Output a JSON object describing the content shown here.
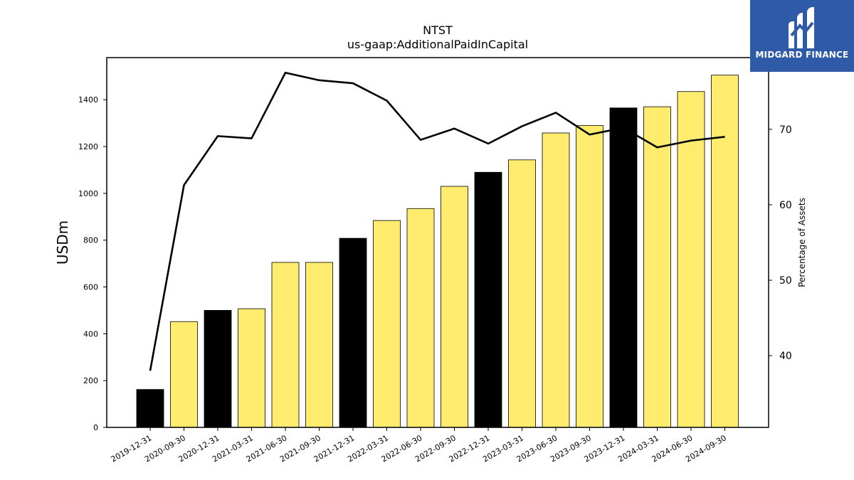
{
  "brand": {
    "name": "MIDGARD FINANCE",
    "color": "#2f5aa8",
    "logo_icon": "midgard-mountain-icon"
  },
  "chart_data": {
    "type": "bar",
    "title": "NTST",
    "subtitle": "us-gaap:AdditionalPaidInCapital",
    "ylabel": "USDm",
    "y2label": "Percentage of Assets",
    "ylim": [
      0,
      1580
    ],
    "y2lim": [
      30.5,
      79.5
    ],
    "yticks": [
      0,
      200,
      400,
      600,
      800,
      1000,
      1200,
      1400
    ],
    "y2ticks": [
      40,
      50,
      60,
      70
    ],
    "categories": [
      "2019-12-31",
      "2020-09-30",
      "2020-12-31",
      "2021-03-31",
      "2021-06-30",
      "2021-09-30",
      "2021-12-31",
      "2022-03-31",
      "2022-06-30",
      "2022-09-30",
      "2022-12-31",
      "2023-03-31",
      "2023-06-30",
      "2023-09-30",
      "2023-12-31",
      "2024-03-31",
      "2024-06-30",
      "2024-09-30"
    ],
    "series": [
      {
        "type": "bar",
        "axis": "left",
        "values": [
          162,
          452,
          500,
          507,
          705,
          705,
          808,
          884,
          935,
          1030,
          1090,
          1143,
          1258,
          1290,
          1365,
          1370,
          1435,
          1505
        ],
        "colors": [
          "#000000",
          "#ffec6e",
          "#000000",
          "#ffec6e",
          "#ffec6e",
          "#ffec6e",
          "#000000",
          "#ffec6e",
          "#ffec6e",
          "#ffec6e",
          "#000000",
          "#ffec6e",
          "#ffec6e",
          "#ffec6e",
          "#000000",
          "#ffec6e",
          "#ffec6e",
          "#ffec6e"
        ]
      },
      {
        "type": "line",
        "axis": "right",
        "color": "#000000",
        "values": [
          38.0,
          62.6,
          69.1,
          68.8,
          77.5,
          76.5,
          76.1,
          73.8,
          68.6,
          70.1,
          68.1,
          70.4,
          72.2,
          69.3,
          70.2,
          67.6,
          68.5,
          69.0
        ]
      }
    ],
    "grid": false,
    "legend": "none"
  }
}
